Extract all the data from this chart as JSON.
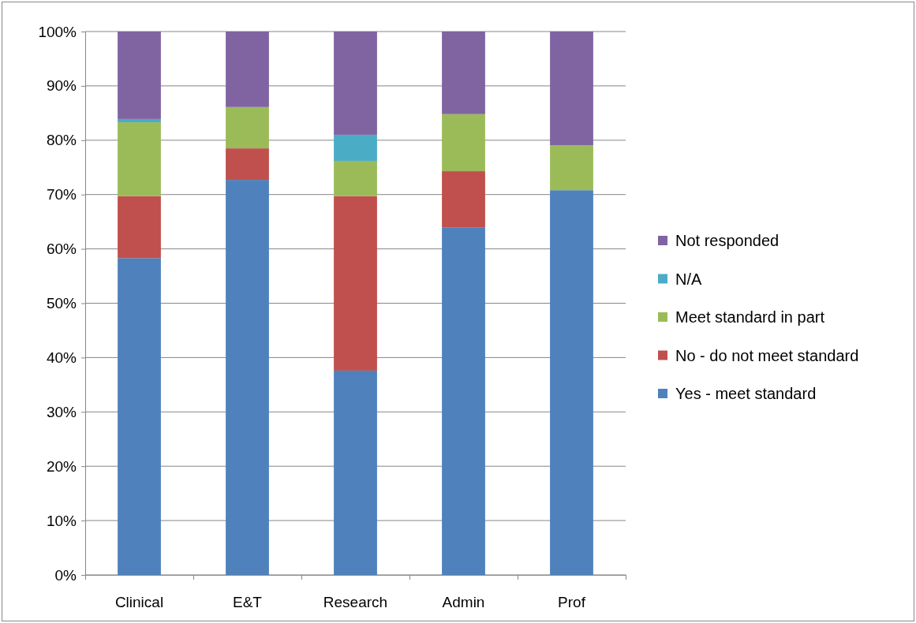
{
  "chart_data": {
    "type": "bar",
    "stacked": true,
    "categories": [
      "Clinical",
      "E&T",
      "Research",
      "Admin",
      "Prof"
    ],
    "series": [
      {
        "name": "Yes - meet standard",
        "color": "#4f81bd",
        "values": [
          58.3,
          72.7,
          37.6,
          63.9,
          70.8
        ]
      },
      {
        "name": "No - do not meet standard",
        "color": "#c0504d",
        "values": [
          11.4,
          5.8,
          32.1,
          10.4,
          0
        ]
      },
      {
        "name": "Meet standard in part",
        "color": "#9bbb59",
        "values": [
          13.6,
          7.6,
          6.5,
          10.5,
          8.3
        ]
      },
      {
        "name": "N/A",
        "color": "#4bacc6",
        "values": [
          0.6,
          0,
          4.8,
          0,
          0
        ]
      },
      {
        "name": "Not responded",
        "color": "#8064a2",
        "values": [
          16.1,
          13.9,
          19.0,
          15.2,
          20.9
        ]
      }
    ],
    "ylim": [
      0,
      100
    ],
    "yticks": [
      {
        "value": 0,
        "label": "0%"
      },
      {
        "value": 10,
        "label": "10%"
      },
      {
        "value": 20,
        "label": "20%"
      },
      {
        "value": 30,
        "label": "30%"
      },
      {
        "value": 40,
        "label": "40%"
      },
      {
        "value": 50,
        "label": "50%"
      },
      {
        "value": 60,
        "label": "60%"
      },
      {
        "value": 70,
        "label": "70%"
      },
      {
        "value": 80,
        "label": "80%"
      },
      {
        "value": 90,
        "label": "90%"
      },
      {
        "value": 100,
        "label": "100%"
      }
    ],
    "grid": "y",
    "legend": "right"
  }
}
